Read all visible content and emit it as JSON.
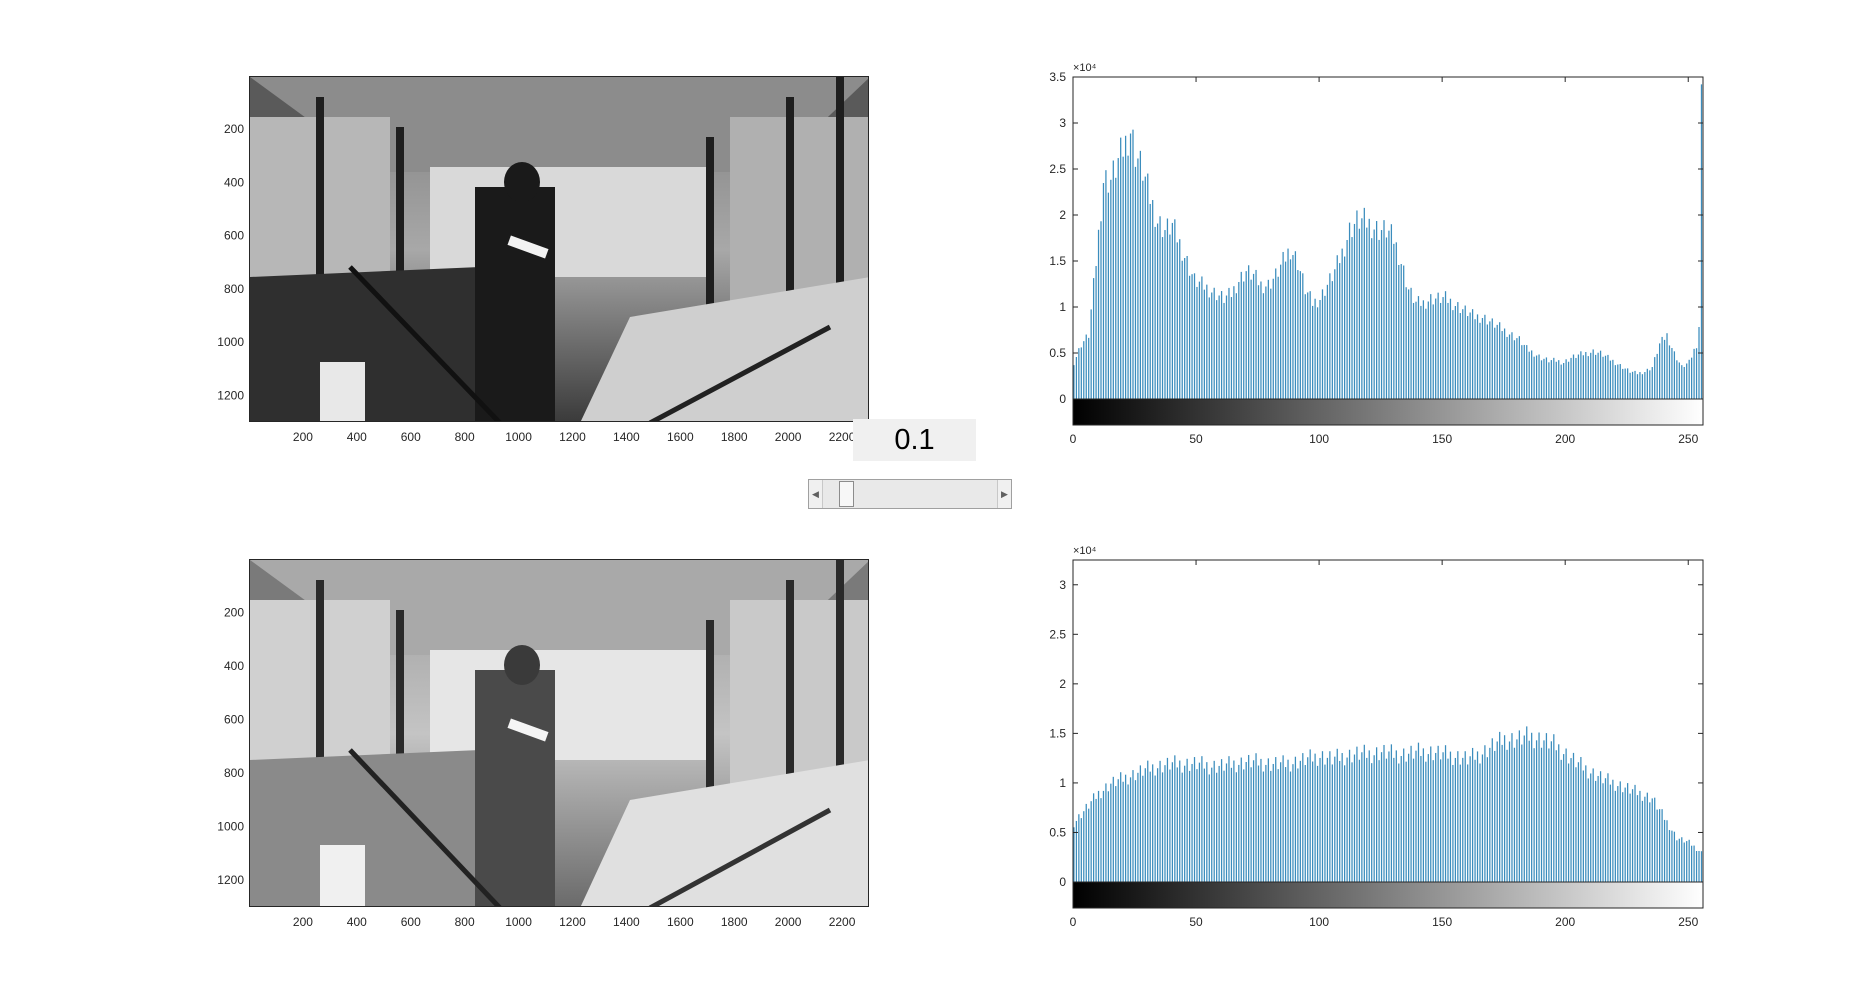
{
  "image_axes": {
    "x_ticks": [
      "200",
      "400",
      "600",
      "800",
      "1000",
      "1200",
      "1400",
      "1600",
      "1800",
      "2000",
      "2200"
    ],
    "y_ticks": [
      "200",
      "400",
      "600",
      "800",
      "1000",
      "1200"
    ]
  },
  "control": {
    "value_label": "0.1",
    "slider_value": 0.1
  },
  "colors": {
    "bar": "#3b8dbd",
    "axis": "#262626",
    "slider_bg": "#e9e9e9",
    "value_bg": "#f0f0f0"
  },
  "chart_data": [
    {
      "type": "bar",
      "title": "",
      "xlabel": "",
      "ylabel": "",
      "exponent_label": "×10⁴",
      "xlim": [
        0,
        256
      ],
      "ylim": [
        0,
        3.5
      ],
      "x_ticks": [
        "0",
        "50",
        "100",
        "150",
        "200",
        "250"
      ],
      "y_ticks": [
        "0",
        "0.5",
        "1",
        "1.5",
        "2",
        "2.5",
        "3",
        "3.5"
      ],
      "profile": [
        [
          0,
          0.4
        ],
        [
          3,
          0.6
        ],
        [
          6,
          0.7
        ],
        [
          9,
          1.5
        ],
        [
          12,
          2.4
        ],
        [
          15,
          2.4
        ],
        [
          18,
          2.6
        ],
        [
          21,
          2.8
        ],
        [
          23,
          2.95
        ],
        [
          25,
          2.7
        ],
        [
          28,
          2.5
        ],
        [
          31,
          2.2
        ],
        [
          34,
          1.95
        ],
        [
          37,
          1.85
        ],
        [
          40,
          1.9
        ],
        [
          43,
          1.7
        ],
        [
          46,
          1.5
        ],
        [
          49,
          1.3
        ],
        [
          52,
          1.25
        ],
        [
          55,
          1.2
        ],
        [
          58,
          1.15
        ],
        [
          61,
          1.1
        ],
        [
          64,
          1.15
        ],
        [
          67,
          1.3
        ],
        [
          70,
          1.4
        ],
        [
          73,
          1.35
        ],
        [
          76,
          1.25
        ],
        [
          79,
          1.25
        ],
        [
          82,
          1.35
        ],
        [
          85,
          1.5
        ],
        [
          88,
          1.65
        ],
        [
          91,
          1.5
        ],
        [
          94,
          1.2
        ],
        [
          97,
          1.05
        ],
        [
          100,
          1.1
        ],
        [
          103,
          1.25
        ],
        [
          106,
          1.4
        ],
        [
          109,
          1.6
        ],
        [
          112,
          1.85
        ],
        [
          115,
          1.95
        ],
        [
          118,
          1.95
        ],
        [
          121,
          1.9
        ],
        [
          124,
          1.85
        ],
        [
          127,
          1.85
        ],
        [
          130,
          1.75
        ],
        [
          133,
          1.5
        ],
        [
          136,
          1.2
        ],
        [
          139,
          1.05
        ],
        [
          142,
          1.05
        ],
        [
          145,
          1.1
        ],
        [
          148,
          1.1
        ],
        [
          151,
          1.1
        ],
        [
          154,
          1.05
        ],
        [
          157,
          1.0
        ],
        [
          160,
          0.95
        ],
        [
          163,
          0.9
        ],
        [
          166,
          0.9
        ],
        [
          169,
          0.85
        ],
        [
          172,
          0.8
        ],
        [
          175,
          0.75
        ],
        [
          178,
          0.7
        ],
        [
          181,
          0.65
        ],
        [
          184,
          0.55
        ],
        [
          187,
          0.5
        ],
        [
          190,
          0.45
        ],
        [
          193,
          0.42
        ],
        [
          196,
          0.42
        ],
        [
          199,
          0.4
        ],
        [
          202,
          0.45
        ],
        [
          205,
          0.48
        ],
        [
          208,
          0.5
        ],
        [
          211,
          0.52
        ],
        [
          214,
          0.5
        ],
        [
          217,
          0.45
        ],
        [
          220,
          0.4
        ],
        [
          223,
          0.35
        ],
        [
          226,
          0.3
        ],
        [
          229,
          0.28
        ],
        [
          232,
          0.3
        ],
        [
          235,
          0.35
        ],
        [
          238,
          0.6
        ],
        [
          241,
          0.7
        ],
        [
          244,
          0.5
        ],
        [
          247,
          0.35
        ],
        [
          250,
          0.4
        ],
        [
          253,
          0.6
        ],
        [
          254,
          0.8
        ],
        [
          255,
          3.3
        ]
      ]
    },
    {
      "type": "bar",
      "title": "",
      "xlabel": "",
      "ylabel": "",
      "exponent_label": "×10⁴",
      "xlim": [
        0,
        256
      ],
      "ylim": [
        0,
        3.25
      ],
      "x_ticks": [
        "0",
        "50",
        "100",
        "150",
        "200",
        "250"
      ],
      "y_ticks": [
        "0",
        "0.5",
        "1",
        "1.5",
        "2",
        "2.5",
        "3"
      ],
      "profile": [
        [
          0,
          0.6
        ],
        [
          5,
          0.75
        ],
        [
          10,
          0.9
        ],
        [
          15,
          1.0
        ],
        [
          20,
          1.05
        ],
        [
          25,
          1.1
        ],
        [
          30,
          1.15
        ],
        [
          35,
          1.18
        ],
        [
          40,
          1.2
        ],
        [
          45,
          1.2
        ],
        [
          50,
          1.2
        ],
        [
          55,
          1.18
        ],
        [
          60,
          1.18
        ],
        [
          65,
          1.2
        ],
        [
          70,
          1.22
        ],
        [
          75,
          1.22
        ],
        [
          80,
          1.2
        ],
        [
          85,
          1.2
        ],
        [
          90,
          1.22
        ],
        [
          95,
          1.25
        ],
        [
          100,
          1.28
        ],
        [
          105,
          1.25
        ],
        [
          110,
          1.28
        ],
        [
          115,
          1.3
        ],
        [
          120,
          1.3
        ],
        [
          125,
          1.32
        ],
        [
          130,
          1.3
        ],
        [
          135,
          1.3
        ],
        [
          140,
          1.32
        ],
        [
          145,
          1.32
        ],
        [
          150,
          1.3
        ],
        [
          155,
          1.28
        ],
        [
          160,
          1.25
        ],
        [
          165,
          1.3
        ],
        [
          170,
          1.38
        ],
        [
          175,
          1.45
        ],
        [
          180,
          1.45
        ],
        [
          185,
          1.48
        ],
        [
          190,
          1.45
        ],
        [
          195,
          1.4
        ],
        [
          200,
          1.3
        ],
        [
          205,
          1.2
        ],
        [
          210,
          1.12
        ],
        [
          215,
          1.05
        ],
        [
          220,
          1.0
        ],
        [
          225,
          0.95
        ],
        [
          230,
          0.9
        ],
        [
          235,
          0.85
        ],
        [
          240,
          0.65
        ],
        [
          245,
          0.45
        ],
        [
          250,
          0.4
        ],
        [
          255,
          0.3
        ]
      ]
    }
  ]
}
